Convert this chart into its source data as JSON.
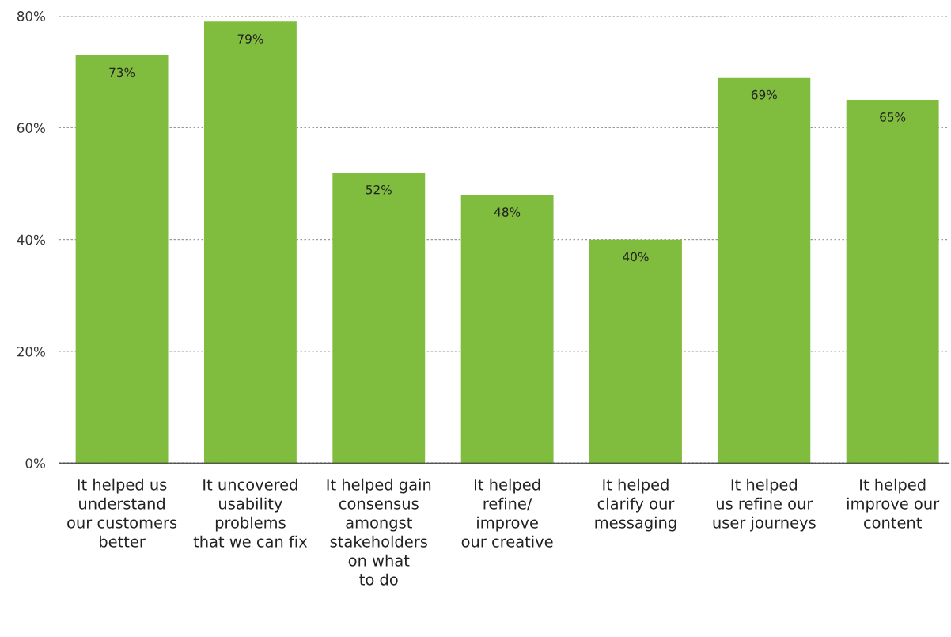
{
  "chart_data": {
    "type": "bar",
    "categories": [
      "It helped us\nunderstand\nour customers\nbetter",
      "It uncovered\nusability\nproblems\nthat we can fix",
      "It helped gain\nconsensus\namongst\nstakeholders\non what\nto do",
      "It helped\nrefine/\nimprove\nour creative",
      "It helped\nclarify our\nmessaging",
      "It helped\nus refine our\nuser journeys",
      "It helped\nimprove our\ncontent"
    ],
    "values": [
      73,
      79,
      52,
      48,
      40,
      69,
      65
    ],
    "value_labels": [
      "73%",
      "79%",
      "52%",
      "48%",
      "40%",
      "69%",
      "65%"
    ],
    "color": "#80bc3e",
    "ylim": [
      0,
      80
    ],
    "yticks": [
      {
        "value": 0,
        "label": "0%"
      },
      {
        "value": 20,
        "label": "20%"
      },
      {
        "value": 40,
        "label": "40%"
      },
      {
        "value": 60,
        "label": "60%"
      },
      {
        "value": 80,
        "label": "80%"
      }
    ],
    "grid": "y"
  }
}
